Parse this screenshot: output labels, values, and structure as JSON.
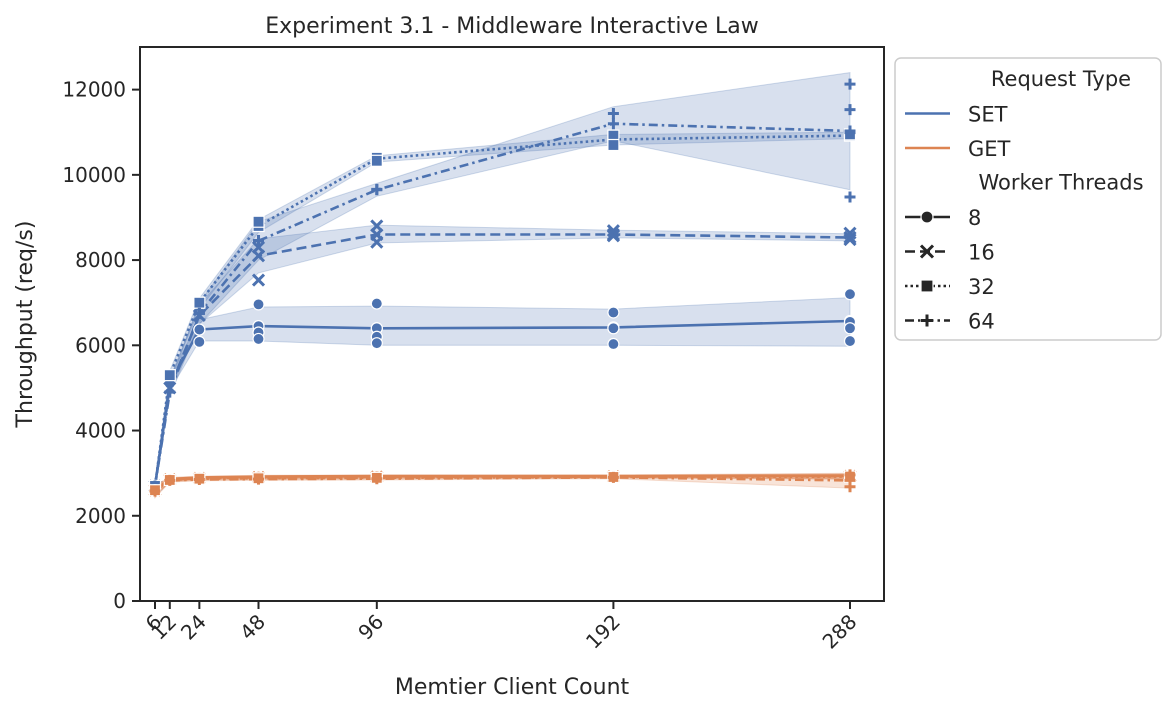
{
  "chart_data": {
    "type": "line",
    "title": "Experiment 3.1 - Middleware Interactive Law",
    "xlabel": "Memtier Client Count",
    "ylabel": "Throughput (req/s)",
    "xlim": [
      0,
      300
    ],
    "ylim": [
      0,
      13000
    ],
    "x_ticks": [
      6,
      12,
      24,
      48,
      96,
      192,
      288
    ],
    "x_tick_labels": [
      "6",
      "12",
      "24",
      "48",
      "96",
      "192",
      "288"
    ],
    "x_tick_rotation": 45,
    "y_ticks": [
      0,
      2000,
      4000,
      6000,
      8000,
      10000,
      12000
    ],
    "y_tick_labels": [
      "0",
      "2000",
      "4000",
      "6000",
      "8000",
      "10000",
      "12000"
    ],
    "grid": false,
    "legend": {
      "placement": "outside-right-top",
      "hue_title": "Request Type",
      "hue_entries": [
        {
          "label": "SET",
          "color": "#4c72b0"
        },
        {
          "label": "GET",
          "color": "#dd8452"
        }
      ],
      "style_title": "Worker Threads",
      "style_entries": [
        {
          "label": "8",
          "marker": "circle",
          "dash": "solid"
        },
        {
          "label": "16",
          "marker": "x",
          "dash": "dashed"
        },
        {
          "label": "32",
          "marker": "square",
          "dash": "dotted"
        },
        {
          "label": "64",
          "marker": "plus",
          "dash": "dashdot"
        }
      ]
    },
    "colors": {
      "SET": "#4c72b0",
      "GET": "#dd8452"
    },
    "series": [
      {
        "request_type": "SET",
        "worker_threads": "8",
        "marker": "circle",
        "dash": "solid",
        "x": [
          6,
          12,
          24,
          48,
          96,
          192,
          288
        ],
        "y": [
          2700,
          5100,
          6370,
          6450,
          6400,
          6420,
          6570
        ],
        "ci_low": [
          2650,
          4950,
          6100,
          6100,
          6000,
          6000,
          5980
        ],
        "ci_high": [
          2780,
          5250,
          6600,
          6900,
          6920,
          6850,
          7120
        ],
        "points": [
          [
            288,
            7200
          ],
          [
            288,
            6550
          ],
          [
            288,
            6400
          ],
          [
            288,
            6100
          ],
          [
            192,
            6770
          ],
          [
            192,
            6400
          ],
          [
            192,
            6030
          ],
          [
            96,
            6980
          ],
          [
            96,
            6400
          ],
          [
            96,
            6200
          ],
          [
            96,
            6050
          ],
          [
            48,
            6960
          ],
          [
            48,
            6450
          ],
          [
            48,
            6300
          ],
          [
            48,
            6150
          ],
          [
            24,
            6370
          ],
          [
            24,
            6080
          ]
        ]
      },
      {
        "request_type": "SET",
        "worker_threads": "16",
        "marker": "x",
        "dash": "dashed",
        "x": [
          6,
          12,
          24,
          48,
          96,
          192,
          288
        ],
        "y": [
          2700,
          5000,
          6700,
          8100,
          8600,
          8600,
          8530
        ],
        "ci_low": [
          2650,
          4900,
          6500,
          7700,
          8400,
          8520,
          8450
        ],
        "ci_high": [
          2780,
          5200,
          6950,
          8500,
          8820,
          8700,
          8620
        ],
        "points": [
          [
            288,
            8630
          ],
          [
            288,
            8480
          ],
          [
            192,
            8690
          ],
          [
            192,
            8570
          ],
          [
            96,
            8800
          ],
          [
            96,
            8420
          ],
          [
            48,
            7530
          ],
          [
            48,
            8300
          ]
        ]
      },
      {
        "request_type": "SET",
        "worker_threads": "32",
        "marker": "square",
        "dash": "dotted",
        "x": [
          6,
          12,
          24,
          48,
          96,
          192,
          288
        ],
        "y": [
          2700,
          5300,
          7000,
          8800,
          10380,
          10830,
          10920
        ],
        "ci_low": [
          2650,
          5200,
          6850,
          8650,
          10300,
          10700,
          10850
        ],
        "ci_high": [
          2780,
          5400,
          7100,
          8950,
          10450,
          10950,
          11000
        ],
        "points": [
          [
            288,
            10950
          ],
          [
            192,
            10920
          ],
          [
            192,
            10700
          ],
          [
            96,
            10400
          ],
          [
            96,
            10330
          ],
          [
            48,
            8900
          ]
        ]
      },
      {
        "request_type": "SET",
        "worker_threads": "64",
        "marker": "plus",
        "dash": "dashdot",
        "x": [
          6,
          12,
          24,
          48,
          96,
          192,
          288
        ],
        "y": [
          2700,
          4900,
          6750,
          8450,
          9650,
          11200,
          11030
        ],
        "ci_low": [
          2650,
          4800,
          6500,
          8000,
          9500,
          10800,
          9650
        ],
        "ci_high": [
          2780,
          5100,
          7000,
          8900,
          9800,
          11600,
          12400
        ],
        "points": [
          [
            288,
            12130
          ],
          [
            288,
            11530
          ],
          [
            288,
            10990
          ],
          [
            288,
            9480
          ],
          [
            192,
            11440
          ],
          [
            96,
            9660
          ],
          [
            48,
            8460
          ],
          [
            24,
            6750
          ]
        ]
      },
      {
        "request_type": "GET",
        "worker_threads": "8",
        "marker": "circle",
        "dash": "solid",
        "x": [
          6,
          12,
          24,
          48,
          96,
          192,
          288
        ],
        "y": [
          2600,
          2860,
          2900,
          2920,
          2930,
          2930,
          2940
        ],
        "ci_low": [
          2450,
          2820,
          2870,
          2890,
          2900,
          2900,
          2860
        ],
        "ci_high": [
          2720,
          2900,
          2930,
          2950,
          2960,
          2960,
          3000
        ],
        "points": []
      },
      {
        "request_type": "GET",
        "worker_threads": "16",
        "marker": "x",
        "dash": "dashed",
        "x": [
          6,
          12,
          24,
          48,
          96,
          192,
          288
        ],
        "y": [
          2600,
          2850,
          2880,
          2900,
          2910,
          2920,
          2930
        ],
        "ci_low": [
          2450,
          2810,
          2850,
          2870,
          2880,
          2900,
          2880
        ],
        "ci_high": [
          2720,
          2890,
          2910,
          2930,
          2940,
          2950,
          2980
        ],
        "points": []
      },
      {
        "request_type": "GET",
        "worker_threads": "32",
        "marker": "square",
        "dash": "dotted",
        "x": [
          6,
          12,
          24,
          48,
          96,
          192,
          288
        ],
        "y": [
          2600,
          2840,
          2870,
          2880,
          2890,
          2910,
          2920
        ],
        "ci_low": [
          2450,
          2800,
          2840,
          2850,
          2860,
          2880,
          2860
        ],
        "ci_high": [
          2720,
          2880,
          2900,
          2910,
          2920,
          2940,
          2980
        ],
        "points": []
      },
      {
        "request_type": "GET",
        "worker_threads": "64",
        "marker": "plus",
        "dash": "dashdot",
        "x": [
          6,
          12,
          24,
          48,
          96,
          192,
          288
        ],
        "y": [
          2580,
          2830,
          2850,
          2860,
          2870,
          2900,
          2830
        ],
        "ci_low": [
          2420,
          2790,
          2820,
          2830,
          2840,
          2870,
          2650
        ],
        "ci_high": [
          2700,
          2870,
          2880,
          2890,
          2900,
          2930,
          2960
        ],
        "points": [
          [
            288,
            2680
          ],
          [
            288,
            2960
          ]
        ]
      }
    ]
  }
}
